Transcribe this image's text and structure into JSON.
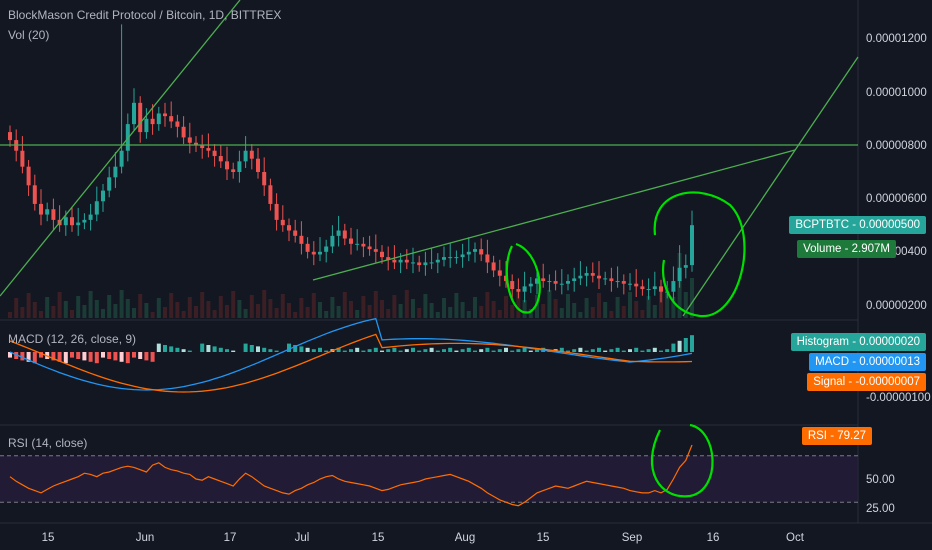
{
  "header": {
    "title": "BlockMason Credit Protocol / Bitcoin, 1D, BITTREX",
    "volume_indicator": "Vol (20)",
    "macd_indicator": "MACD (12, 26, close, 9)",
    "rsi_indicator": "RSI (14, close)"
  },
  "tags": {
    "bcpt": "BCPTBTC - 0.00000500",
    "volume": "Volume - 2.907M",
    "histogram": "Histogram - 0.00000020",
    "macd": "MACD - 0.00000013",
    "signal": "Signal - -0.00000007",
    "rsi": "RSI - 79.27"
  },
  "colors": {
    "background": "#131722",
    "up": "#26a69a",
    "down": "#ef5350",
    "trendline": "#4caf50",
    "annotation": "#00e000",
    "macd_line": "#2196f3",
    "signal_line": "#ff6d00",
    "rsi_line": "#ff6d00",
    "rsi_band": "#2a1e3f"
  },
  "chart_data": [
    {
      "type": "candlestick",
      "title": "BlockMason Credit Protocol / Bitcoin, 1D, BITTREX",
      "y_ticks": [
        "0.00000200",
        "0.00000400",
        "0.00000600",
        "0.00000800",
        "0.00001000",
        "0.00001200"
      ],
      "ylim": [
        1.6e-06,
        1.3e-06
      ],
      "x_ticks": [
        "15",
        "Jun",
        "17",
        "Jul",
        "15",
        "Aug",
        "15",
        "Sep",
        "16",
        "Oct"
      ],
      "close_profile": [
        8.2,
        7.8,
        7.2,
        6.5,
        5.8,
        5.4,
        5.6,
        5.2,
        5.0,
        5.3,
        5.0,
        5.1,
        5.2,
        5.4,
        5.9,
        6.3,
        6.8,
        7.2,
        7.8,
        8.8,
        9.6,
        8.5,
        9.0,
        8.8,
        9.2,
        9.1,
        8.9,
        8.7,
        8.3,
        8.1,
        8.0,
        7.9,
        7.8,
        7.6,
        7.4,
        7.1,
        7.0,
        7.4,
        7.8,
        7.5,
        7.0,
        6.5,
        5.8,
        5.2,
        5.0,
        4.8,
        4.6,
        4.3,
        4.0,
        3.9,
        4.0,
        4.2,
        4.6,
        4.8,
        4.5,
        4.3,
        4.3,
        4.2,
        4.1,
        4.0,
        3.8,
        3.7,
        3.6,
        3.7,
        3.6,
        3.6,
        3.5,
        3.6,
        3.6,
        3.7,
        3.8,
        3.8,
        3.8,
        3.9,
        4.0,
        4.1,
        3.9,
        3.6,
        3.3,
        3.1,
        2.9,
        2.6,
        2.5,
        2.7,
        2.8,
        3.0,
        2.9,
        2.9,
        2.8,
        2.8,
        2.9,
        3.0,
        3.1,
        3.2,
        3.1,
        3.0,
        3.0,
        2.9,
        2.9,
        2.8,
        2.8,
        2.7,
        2.6,
        2.6,
        2.7,
        2.5,
        2.5,
        2.9,
        3.4,
        3.5,
        5.0
      ],
      "last_value": "0.00000500"
    },
    {
      "type": "histogram",
      "title": "Vol (20)",
      "last_value": "2.907M"
    },
    {
      "type": "line",
      "title": "MACD (12, 26, close, 9)",
      "y_ticks": [
        "-0.00000100"
      ],
      "series": [
        {
          "name": "MACD",
          "last_value": "0.00000013"
        },
        {
          "name": "Signal",
          "last_value": "-0.00000007"
        },
        {
          "name": "Histogram",
          "last_value": "0.00000020"
        }
      ]
    },
    {
      "type": "line",
      "title": "RSI (14, close)",
      "y_ticks": [
        "50.00",
        "25.00"
      ],
      "bands": [
        30,
        70
      ],
      "rsi": [
        52,
        48,
        45,
        42,
        40,
        38,
        41,
        44,
        46,
        48,
        50,
        52,
        55,
        54,
        52,
        55,
        56,
        58,
        60,
        61,
        60,
        58,
        56,
        62,
        64,
        60,
        58,
        57,
        55,
        54,
        50,
        49,
        52,
        50,
        48,
        46,
        44,
        50,
        55,
        52,
        48,
        44,
        42,
        40,
        38,
        37,
        40,
        42,
        45,
        47,
        50,
        52,
        53,
        50,
        48,
        47,
        46,
        45,
        44,
        42,
        40,
        41,
        43,
        45,
        46,
        47,
        48,
        50,
        51,
        52,
        53,
        54,
        52,
        50,
        48,
        45,
        42,
        38,
        35,
        32,
        30,
        28,
        27,
        30,
        34,
        38,
        40,
        42,
        44,
        43,
        42,
        44,
        46,
        48,
        47,
        46,
        45,
        44,
        43,
        42,
        40,
        39,
        38,
        38,
        40,
        38,
        41,
        50,
        60,
        66,
        79.27
      ],
      "last_value": "79.27"
    }
  ]
}
